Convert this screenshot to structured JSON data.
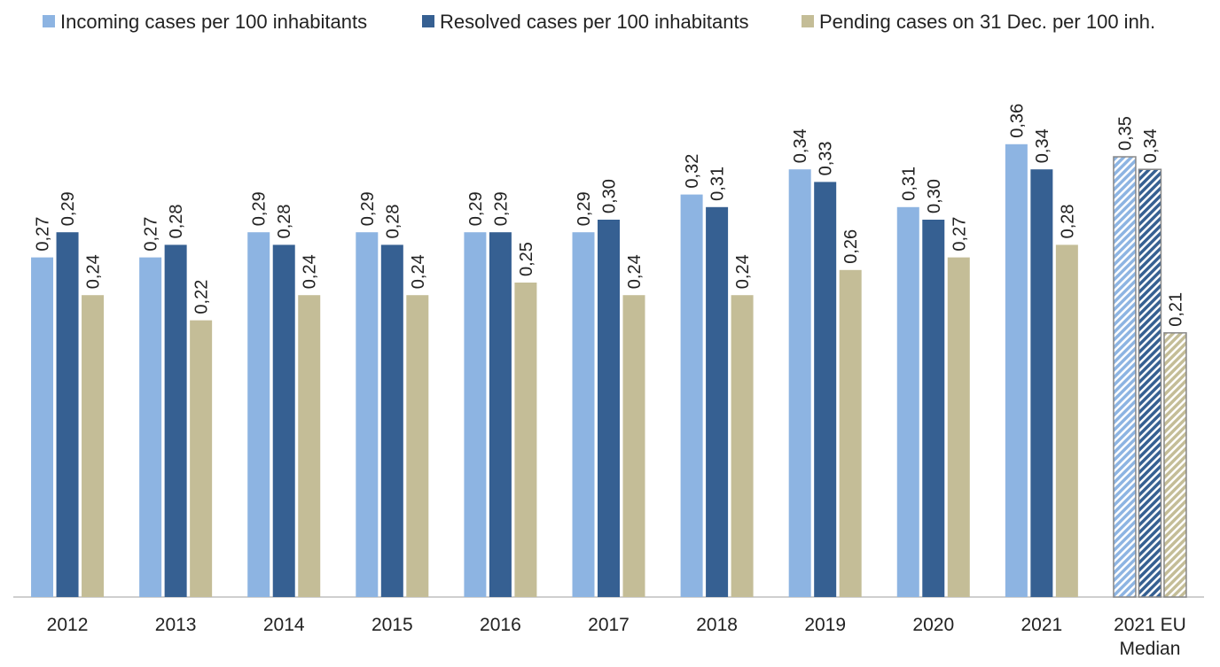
{
  "chart_data": {
    "type": "bar",
    "categories": [
      "2012",
      "2013",
      "2014",
      "2015",
      "2016",
      "2017",
      "2018",
      "2019",
      "2020",
      "2021",
      "2021 EU Median"
    ],
    "series": [
      {
        "name": "Incoming cases per 100 inhabitants",
        "color": "#8db4e2",
        "values": [
          0.27,
          0.27,
          0.29,
          0.29,
          0.29,
          0.29,
          0.32,
          0.34,
          0.31,
          0.36,
          0.35
        ],
        "value_labels": [
          "0,27",
          "0,27",
          "0,29",
          "0,29",
          "0,29",
          "0,29",
          "0,32",
          "0,34",
          "0,31",
          "0,36",
          "0,35"
        ]
      },
      {
        "name": "Resolved cases per 100 inhabitants",
        "color": "#366092",
        "values": [
          0.29,
          0.28,
          0.28,
          0.28,
          0.29,
          0.3,
          0.31,
          0.33,
          0.3,
          0.34,
          0.34
        ],
        "value_labels": [
          "0,29",
          "0,28",
          "0,28",
          "0,28",
          "0,29",
          "0,30",
          "0,31",
          "0,33",
          "0,30",
          "0,34",
          "0,34"
        ]
      },
      {
        "name": "Pending cases on 31 Dec. per 100 inh.",
        "color": "#c4bd97",
        "values": [
          0.24,
          0.22,
          0.24,
          0.24,
          0.25,
          0.24,
          0.24,
          0.26,
          0.27,
          0.28,
          0.21
        ],
        "value_labels": [
          "0,24",
          "0,22",
          "0,24",
          "0,24",
          "0,25",
          "0,24",
          "0,24",
          "0,26",
          "0,27",
          "0,28",
          "0,21"
        ]
      }
    ],
    "ylim": [
      0,
      0.4
    ],
    "hatched_categories": [
      10
    ],
    "legend": "top"
  }
}
